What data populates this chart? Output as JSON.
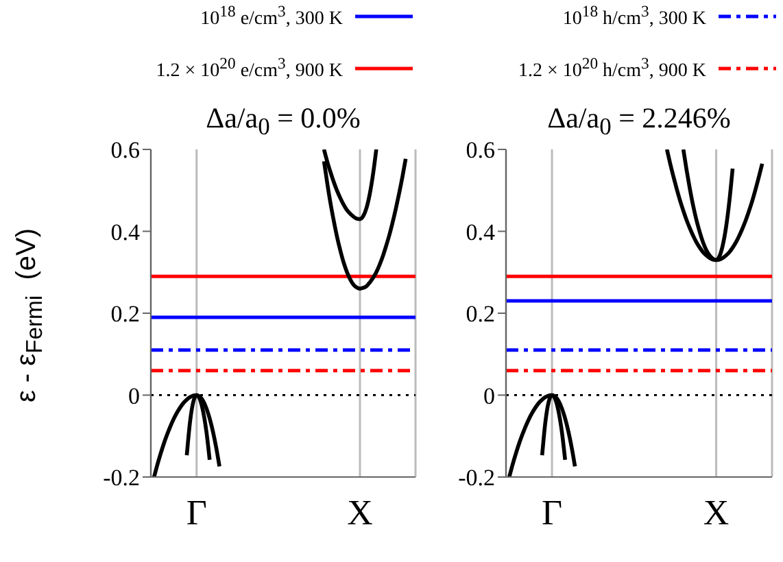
{
  "chart_data": [
    {
      "type": "line",
      "title": "Δa/a$_{0}$ = 0.0%",
      "ylabel": "ε - ε$_{Fermi}$  (eV)",
      "categories": [
        null,
        null,
        null,
        null,
        null,
        null,
        null,
        null,
        null,
        null,
        null,
        null,
        null,
        null,
        "Γ",
        null,
        null,
        null,
        null,
        null,
        null,
        null,
        null,
        null,
        null,
        null,
        null,
        null,
        null,
        null,
        null,
        null,
        null,
        null,
        null,
        null,
        null,
        null,
        null,
        null,
        null,
        null,
        null,
        null,
        null,
        null,
        null,
        null,
        null,
        null,
        null,
        null,
        null,
        null,
        null,
        null,
        null,
        null,
        null,
        null,
        null,
        null,
        null,
        null,
        "X",
        null,
        null,
        null,
        null,
        null,
        null,
        null,
        null,
        null,
        null,
        null,
        null,
        null,
        null,
        null,
        null,
        null
      ],
      "ylim": [
        -0.2,
        0.6
      ],
      "yticks": [
        -0.2,
        0,
        0.2,
        0.4,
        0.6
      ],
      "grid": "x",
      "legend": "top",
      "ref_lines": [
        {
          "axis": "y",
          "value": 0,
          "label": null,
          "color": "#000000",
          "line_style": "dotted"
        }
      ],
      "series": [
        {
          "name": "10$^{18}$ e/cm$^{3}$, 300 K",
          "color": "#0000ff",
          "line_style": "solid",
          "values": [
            0.19,
            0.19,
            0.19,
            0.19,
            0.19,
            0.19,
            0.19,
            0.19,
            0.19,
            0.19,
            0.19,
            0.19,
            0.19,
            0.19,
            0.19,
            0.19,
            0.19,
            0.19,
            0.19,
            0.19,
            0.19,
            0.19,
            0.19,
            0.19,
            0.19,
            0.19,
            0.19,
            0.19,
            0.19,
            0.19,
            0.19,
            0.19,
            0.19,
            0.19,
            0.19,
            0.19,
            0.19,
            0.19,
            0.19,
            0.19,
            0.19,
            0.19,
            0.19,
            0.19,
            0.19,
            0.19,
            0.19,
            0.19,
            0.19,
            0.19,
            0.19,
            0.19,
            0.19,
            0.19,
            0.19,
            0.19,
            0.19,
            0.19,
            0.19,
            0.19,
            0.19,
            0.19,
            0.19,
            0.19,
            0.19,
            0.19,
            0.19,
            0.19,
            0.19,
            0.19,
            0.19,
            0.19,
            0.19,
            0.19,
            0.19,
            0.19,
            0.19,
            0.19,
            0.19,
            0.19,
            0.19,
            0.19
          ]
        },
        {
          "name": "1.2 × 10$^{20}$ e/cm$^{3}$, 900 K",
          "color": "#ff0000",
          "line_style": "solid",
          "values": [
            0.29,
            0.29,
            0.29,
            0.29,
            0.29,
            0.29,
            0.29,
            0.29,
            0.29,
            0.29,
            0.29,
            0.29,
            0.29,
            0.29,
            0.29,
            0.29,
            0.29,
            0.29,
            0.29,
            0.29,
            0.29,
            0.29,
            0.29,
            0.29,
            0.29,
            0.29,
            0.29,
            0.29,
            0.29,
            0.29,
            0.29,
            0.29,
            0.29,
            0.29,
            0.29,
            0.29,
            0.29,
            0.29,
            0.29,
            0.29,
            0.29,
            0.29,
            0.29,
            0.29,
            0.29,
            0.29,
            0.29,
            0.29,
            0.29,
            0.29,
            0.29,
            0.29,
            0.29,
            0.29,
            0.29,
            0.29,
            0.29,
            0.29,
            0.29,
            0.29,
            0.29,
            0.29,
            0.29,
            0.29,
            0.29,
            0.29,
            0.29,
            0.29,
            0.29,
            0.29,
            0.29,
            0.29,
            0.29,
            0.29,
            0.29,
            0.29,
            0.29,
            0.29,
            0.29,
            0.29,
            0.29,
            0.29
          ]
        },
        {
          "name": "10$^{18}$ h/cm$^{3}$, 300 K",
          "color": "#0000ff",
          "line_style": "dashdot",
          "values": [
            0.11,
            0.11,
            0.11,
            0.11,
            0.11,
            0.11,
            0.11,
            0.11,
            0.11,
            0.11,
            0.11,
            0.11,
            0.11,
            0.11,
            0.11,
            0.11,
            0.11,
            0.11,
            0.11,
            0.11,
            0.11,
            0.11,
            0.11,
            0.11,
            0.11,
            0.11,
            0.11,
            0.11,
            0.11,
            0.11,
            0.11,
            0.11,
            0.11,
            0.11,
            0.11,
            0.11,
            0.11,
            0.11,
            0.11,
            0.11,
            0.11,
            0.11,
            0.11,
            0.11,
            0.11,
            0.11,
            0.11,
            0.11,
            0.11,
            0.11,
            0.11,
            0.11,
            0.11,
            0.11,
            0.11,
            0.11,
            0.11,
            0.11,
            0.11,
            0.11,
            0.11,
            0.11,
            0.11,
            0.11,
            0.11,
            0.11,
            0.11,
            0.11,
            0.11,
            0.11,
            0.11,
            0.11,
            0.11,
            0.11,
            0.11,
            0.11,
            0.11,
            0.11,
            0.11,
            0.11,
            0.11,
            0.11
          ]
        },
        {
          "name": "1.2 × 10$^{20}$ h/cm$^{3}$, 900 K",
          "color": "#ff0000",
          "line_style": "dashdot",
          "values": [
            0.06,
            0.06,
            0.06,
            0.06,
            0.06,
            0.06,
            0.06,
            0.06,
            0.06,
            0.06,
            0.06,
            0.06,
            0.06,
            0.06,
            0.06,
            0.06,
            0.06,
            0.06,
            0.06,
            0.06,
            0.06,
            0.06,
            0.06,
            0.06,
            0.06,
            0.06,
            0.06,
            0.06,
            0.06,
            0.06,
            0.06,
            0.06,
            0.06,
            0.06,
            0.06,
            0.06,
            0.06,
            0.06,
            0.06,
            0.06,
            0.06,
            0.06,
            0.06,
            0.06,
            0.06,
            0.06,
            0.06,
            0.06,
            0.06,
            0.06,
            0.06,
            0.06,
            0.06,
            0.06,
            0.06,
            0.06,
            0.06,
            0.06,
            0.06,
            0.06,
            0.06,
            0.06,
            0.06,
            0.06,
            0.06,
            0.06,
            0.06,
            0.06,
            0.06,
            0.06,
            0.06,
            0.06,
            0.06,
            0.06,
            0.06,
            0.06,
            0.06,
            0.06,
            0.06,
            0.06,
            0.06,
            0.06
          ]
        },
        {
          "color": "#000000",
          "values": [
            null,
            -0.2,
            -0.17,
            -0.143,
            -0.118,
            -0.096,
            -0.076,
            -0.058,
            -0.043,
            -0.03,
            -0.019,
            -0.011,
            -0.005,
            -0.001,
            0,
            -0.004,
            -0.014,
            -0.032,
            -0.057,
            -0.089,
            -0.128,
            -0.174,
            null,
            null,
            null,
            null,
            null,
            null,
            null,
            null,
            null,
            null,
            null,
            null,
            null,
            null,
            null,
            null,
            null,
            null,
            null,
            null,
            null,
            null,
            null,
            null,
            null,
            null,
            null,
            null,
            null,
            null,
            null,
            null,
            null,
            null,
            null,
            null,
            null,
            null,
            null,
            null,
            null,
            null,
            null,
            null,
            null,
            null,
            null,
            null,
            null,
            null,
            null,
            null,
            null,
            null,
            null,
            null,
            null,
            null,
            null,
            null
          ]
        },
        {
          "color": "#000000",
          "values": [
            null,
            null,
            null,
            null,
            null,
            null,
            null,
            null,
            null,
            null,
            null,
            -0.147,
            -0.065,
            -0.016,
            0,
            -0.01,
            -0.04,
            -0.089,
            -0.158,
            null,
            null,
            null,
            null,
            null,
            null,
            null,
            null,
            null,
            null,
            null,
            null,
            null,
            null,
            null,
            null,
            null,
            null,
            null,
            null,
            null,
            null,
            null,
            null,
            null,
            null,
            null,
            null,
            null,
            null,
            null,
            null,
            null,
            null,
            null,
            null,
            null,
            null,
            null,
            null,
            null,
            null,
            null,
            null,
            null,
            null,
            null,
            null,
            null,
            null,
            null,
            null,
            null,
            null,
            null,
            null,
            null,
            null,
            null,
            null,
            null,
            null,
            null
          ]
        },
        {
          "color": "#000000",
          "values": [
            null,
            null,
            null,
            null,
            null,
            null,
            null,
            null,
            null,
            null,
            null,
            null,
            null,
            null,
            null,
            null,
            null,
            null,
            null,
            null,
            null,
            null,
            null,
            null,
            null,
            null,
            null,
            null,
            null,
            null,
            null,
            null,
            null,
            null,
            null,
            null,
            null,
            null,
            null,
            null,
            null,
            null,
            null,
            null,
            null,
            null,
            null,
            null,
            null,
            null,
            null,
            null,
            null,
            0.6,
            0.57,
            0.544,
            0.52,
            0.499,
            0.481,
            0.465,
            0.452,
            0.443,
            0.436,
            0.431,
            0.43,
            0.437,
            0.457,
            0.491,
            0.539,
            0.6,
            null,
            null,
            null,
            null,
            null,
            null,
            null,
            null,
            null,
            null,
            null,
            null
          ]
        },
        {
          "color": "#000000",
          "values": [
            null,
            null,
            null,
            null,
            null,
            null,
            null,
            null,
            null,
            null,
            null,
            null,
            null,
            null,
            null,
            null,
            null,
            null,
            null,
            null,
            null,
            null,
            null,
            null,
            null,
            null,
            null,
            null,
            null,
            null,
            null,
            null,
            null,
            null,
            null,
            null,
            null,
            null,
            null,
            null,
            null,
            null,
            null,
            null,
            null,
            null,
            null,
            null,
            null,
            null,
            null,
            null,
            null,
            0.571,
            0.517,
            0.468,
            0.425,
            0.386,
            0.353,
            0.324,
            0.301,
            0.283,
            0.27,
            0.263,
            0.26,
            0.262,
            0.266,
            0.275,
            0.286,
            0.3,
            0.318,
            0.339,
            0.364,
            0.391,
            0.422,
            0.456,
            0.493,
            0.533,
            0.577,
            null,
            null,
            null
          ]
        }
      ]
    },
    {
      "type": "line",
      "title": "Δa/a$_{0}$ = 2.246%",
      "categories": [
        null,
        null,
        null,
        null,
        null,
        null,
        null,
        null,
        null,
        null,
        null,
        null,
        null,
        null,
        "Γ",
        null,
        null,
        null,
        null,
        null,
        null,
        null,
        null,
        null,
        null,
        null,
        null,
        null,
        null,
        null,
        null,
        null,
        null,
        null,
        null,
        null,
        null,
        null,
        null,
        null,
        null,
        null,
        null,
        null,
        null,
        null,
        null,
        null,
        null,
        null,
        null,
        null,
        null,
        null,
        null,
        null,
        null,
        null,
        null,
        null,
        null,
        null,
        null,
        null,
        "X",
        null,
        null,
        null,
        null,
        null,
        null,
        null,
        null,
        null,
        null,
        null,
        null,
        null,
        null,
        null,
        null,
        null
      ],
      "ylim": [
        -0.2,
        0.6
      ],
      "yticks": [
        -0.2,
        0,
        0.2,
        0.4,
        0.6
      ],
      "grid": "x",
      "ref_lines": [
        {
          "axis": "y",
          "value": 0,
          "label": null,
          "color": "#000000",
          "line_style": "dotted"
        }
      ],
      "series": [
        {
          "color": "#0000ff",
          "line_style": "solid",
          "values": [
            0.23,
            0.23,
            0.23,
            0.23,
            0.23,
            0.23,
            0.23,
            0.23,
            0.23,
            0.23,
            0.23,
            0.23,
            0.23,
            0.23,
            0.23,
            0.23,
            0.23,
            0.23,
            0.23,
            0.23,
            0.23,
            0.23,
            0.23,
            0.23,
            0.23,
            0.23,
            0.23,
            0.23,
            0.23,
            0.23,
            0.23,
            0.23,
            0.23,
            0.23,
            0.23,
            0.23,
            0.23,
            0.23,
            0.23,
            0.23,
            0.23,
            0.23,
            0.23,
            0.23,
            0.23,
            0.23,
            0.23,
            0.23,
            0.23,
            0.23,
            0.23,
            0.23,
            0.23,
            0.23,
            0.23,
            0.23,
            0.23,
            0.23,
            0.23,
            0.23,
            0.23,
            0.23,
            0.23,
            0.23,
            0.23,
            0.23,
            0.23,
            0.23,
            0.23,
            0.23,
            0.23,
            0.23,
            0.23,
            0.23,
            0.23,
            0.23,
            0.23,
            0.23,
            0.23,
            0.23,
            0.23,
            0.23
          ]
        },
        {
          "color": "#ff0000",
          "line_style": "solid",
          "values": [
            0.29,
            0.29,
            0.29,
            0.29,
            0.29,
            0.29,
            0.29,
            0.29,
            0.29,
            0.29,
            0.29,
            0.29,
            0.29,
            0.29,
            0.29,
            0.29,
            0.29,
            0.29,
            0.29,
            0.29,
            0.29,
            0.29,
            0.29,
            0.29,
            0.29,
            0.29,
            0.29,
            0.29,
            0.29,
            0.29,
            0.29,
            0.29,
            0.29,
            0.29,
            0.29,
            0.29,
            0.29,
            0.29,
            0.29,
            0.29,
            0.29,
            0.29,
            0.29,
            0.29,
            0.29,
            0.29,
            0.29,
            0.29,
            0.29,
            0.29,
            0.29,
            0.29,
            0.29,
            0.29,
            0.29,
            0.29,
            0.29,
            0.29,
            0.29,
            0.29,
            0.29,
            0.29,
            0.29,
            0.29,
            0.29,
            0.29,
            0.29,
            0.29,
            0.29,
            0.29,
            0.29,
            0.29,
            0.29,
            0.29,
            0.29,
            0.29,
            0.29,
            0.29,
            0.29,
            0.29,
            0.29,
            0.29
          ]
        },
        {
          "color": "#0000ff",
          "line_style": "dashdot",
          "values": [
            0.11,
            0.11,
            0.11,
            0.11,
            0.11,
            0.11,
            0.11,
            0.11,
            0.11,
            0.11,
            0.11,
            0.11,
            0.11,
            0.11,
            0.11,
            0.11,
            0.11,
            0.11,
            0.11,
            0.11,
            0.11,
            0.11,
            0.11,
            0.11,
            0.11,
            0.11,
            0.11,
            0.11,
            0.11,
            0.11,
            0.11,
            0.11,
            0.11,
            0.11,
            0.11,
            0.11,
            0.11,
            0.11,
            0.11,
            0.11,
            0.11,
            0.11,
            0.11,
            0.11,
            0.11,
            0.11,
            0.11,
            0.11,
            0.11,
            0.11,
            0.11,
            0.11,
            0.11,
            0.11,
            0.11,
            0.11,
            0.11,
            0.11,
            0.11,
            0.11,
            0.11,
            0.11,
            0.11,
            0.11,
            0.11,
            0.11,
            0.11,
            0.11,
            0.11,
            0.11,
            0.11,
            0.11,
            0.11,
            0.11,
            0.11,
            0.11,
            0.11,
            0.11,
            0.11,
            0.11,
            0.11,
            0.11
          ]
        },
        {
          "color": "#ff0000",
          "line_style": "dashdot",
          "values": [
            0.06,
            0.06,
            0.06,
            0.06,
            0.06,
            0.06,
            0.06,
            0.06,
            0.06,
            0.06,
            0.06,
            0.06,
            0.06,
            0.06,
            0.06,
            0.06,
            0.06,
            0.06,
            0.06,
            0.06,
            0.06,
            0.06,
            0.06,
            0.06,
            0.06,
            0.06,
            0.06,
            0.06,
            0.06,
            0.06,
            0.06,
            0.06,
            0.06,
            0.06,
            0.06,
            0.06,
            0.06,
            0.06,
            0.06,
            0.06,
            0.06,
            0.06,
            0.06,
            0.06,
            0.06,
            0.06,
            0.06,
            0.06,
            0.06,
            0.06,
            0.06,
            0.06,
            0.06,
            0.06,
            0.06,
            0.06,
            0.06,
            0.06,
            0.06,
            0.06,
            0.06,
            0.06,
            0.06,
            0.06,
            0.06,
            0.06,
            0.06,
            0.06,
            0.06,
            0.06,
            0.06,
            0.06,
            0.06,
            0.06,
            0.06,
            0.06,
            0.06,
            0.06,
            0.06,
            0.06,
            0.06,
            0.06
          ]
        },
        {
          "color": "#000000",
          "values": [
            null,
            -0.2,
            -0.17,
            -0.143,
            -0.118,
            -0.096,
            -0.076,
            -0.058,
            -0.043,
            -0.03,
            -0.019,
            -0.011,
            -0.005,
            -0.001,
            0,
            -0.004,
            -0.014,
            -0.032,
            -0.057,
            -0.089,
            -0.128,
            -0.174,
            null,
            null,
            null,
            null,
            null,
            null,
            null,
            null,
            null,
            null,
            null,
            null,
            null,
            null,
            null,
            null,
            null,
            null,
            null,
            null,
            null,
            null,
            null,
            null,
            null,
            null,
            null,
            null,
            null,
            null,
            null,
            null,
            null,
            null,
            null,
            null,
            null,
            null,
            null,
            null,
            null,
            null,
            null,
            null,
            null,
            null,
            null,
            null,
            null,
            null,
            null,
            null,
            null,
            null,
            null,
            null,
            null,
            null,
            null,
            null
          ]
        },
        {
          "color": "#000000",
          "values": [
            null,
            null,
            null,
            null,
            null,
            null,
            null,
            null,
            null,
            null,
            null,
            -0.147,
            -0.065,
            -0.016,
            0,
            -0.01,
            -0.04,
            -0.089,
            -0.158,
            null,
            null,
            null,
            null,
            null,
            null,
            null,
            null,
            null,
            null,
            null,
            null,
            null,
            null,
            null,
            null,
            null,
            null,
            null,
            null,
            null,
            null,
            null,
            null,
            null,
            null,
            null,
            null,
            null,
            null,
            null,
            null,
            null,
            null,
            null,
            null,
            null,
            null,
            null,
            null,
            null,
            null,
            null,
            null,
            null,
            null,
            null,
            null,
            null,
            null,
            null,
            null,
            null,
            null,
            null,
            null,
            null,
            null,
            null,
            null,
            null,
            null,
            null
          ]
        },
        {
          "color": "#000000",
          "values": [
            null,
            null,
            null,
            null,
            null,
            null,
            null,
            null,
            null,
            null,
            null,
            null,
            null,
            null,
            null,
            null,
            null,
            null,
            null,
            null,
            null,
            null,
            null,
            null,
            null,
            null,
            null,
            null,
            null,
            null,
            null,
            null,
            null,
            null,
            null,
            null,
            null,
            null,
            null,
            null,
            null,
            null,
            null,
            null,
            null,
            null,
            null,
            null,
            null,
            0.6,
            0.565,
            0.533,
            0.503,
            0.475,
            0.45,
            0.427,
            0.407,
            0.389,
            0.373,
            0.36,
            0.349,
            0.341,
            0.335,
            0.331,
            0.33,
            0.331,
            0.335,
            0.341,
            0.349,
            0.36,
            0.373,
            0.389,
            0.407,
            0.427,
            0.45,
            0.475,
            0.503,
            0.533,
            0.565,
            null,
            null,
            null
          ]
        },
        {
          "color": "#000000",
          "values": [
            null,
            null,
            null,
            null,
            null,
            null,
            null,
            null,
            null,
            null,
            null,
            null,
            null,
            null,
            null,
            null,
            null,
            null,
            null,
            null,
            null,
            null,
            null,
            null,
            null,
            null,
            null,
            null,
            null,
            null,
            null,
            null,
            null,
            null,
            null,
            null,
            null,
            null,
            null,
            null,
            null,
            null,
            null,
            null,
            null,
            null,
            null,
            null,
            null,
            null,
            null,
            null,
            null,
            null,
            0.6,
            0.549,
            0.503,
            0.462,
            0.427,
            0.398,
            0.373,
            0.354,
            0.341,
            0.333,
            0.33,
            0.339,
            0.366,
            0.41,
            0.473,
            0.553,
            null,
            null,
            null,
            null,
            null,
            null,
            null,
            null,
            null,
            null,
            null,
            null
          ]
        }
      ]
    }
  ]
}
